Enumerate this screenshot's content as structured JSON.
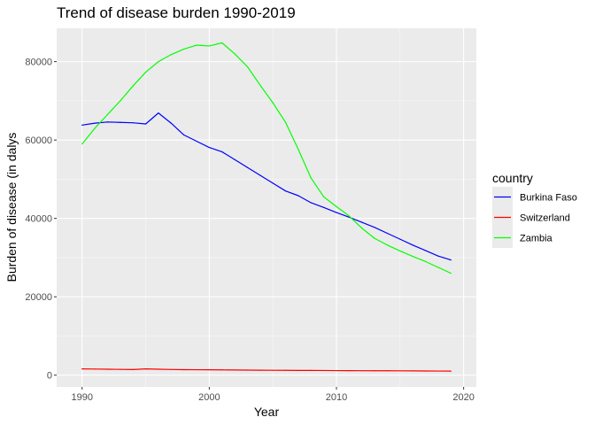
{
  "chart_data": {
    "type": "line",
    "title": "Trend of disease burden 1990-2019",
    "xlabel": "Year",
    "ylabel": "Burden of disease (in dalys",
    "xlim": [
      1988,
      2021
    ],
    "ylim": [
      -3000,
      88500
    ],
    "x_ticks": [
      1990,
      2000,
      2010,
      2020
    ],
    "y_ticks": [
      0,
      20000,
      40000,
      60000,
      80000
    ],
    "grid": true,
    "legend": {
      "title": "country",
      "position": "right"
    },
    "series": [
      {
        "name": "Burkina Faso",
        "color": "#0000ff",
        "x": [
          1990,
          1991,
          1992,
          1993,
          1994,
          1995,
          1996,
          1997,
          1998,
          1999,
          2000,
          2001,
          2002,
          2003,
          2004,
          2005,
          2006,
          2007,
          2008,
          2009,
          2010,
          2011,
          2012,
          2013,
          2014,
          2015,
          2016,
          2017,
          2018,
          2019
        ],
        "values": [
          63800,
          64300,
          64600,
          64500,
          64400,
          64100,
          66900,
          64300,
          61300,
          59700,
          58100,
          57000,
          55000,
          53000,
          51000,
          49000,
          47000,
          45800,
          44000,
          42800,
          41500,
          40300,
          39000,
          37700,
          36200,
          34700,
          33200,
          31800,
          30400,
          29400
        ],
        "label_key": "legend_labels.0"
      },
      {
        "name": "Switzerland",
        "color": "#ff0000",
        "x": [
          1990,
          1991,
          1992,
          1993,
          1994,
          1995,
          1996,
          1997,
          1998,
          1999,
          2000,
          2001,
          2002,
          2003,
          2004,
          2005,
          2006,
          2007,
          2008,
          2009,
          2010,
          2011,
          2012,
          2013,
          2014,
          2015,
          2016,
          2017,
          2018,
          2019
        ],
        "values": [
          1600,
          1560,
          1520,
          1470,
          1430,
          1600,
          1520,
          1450,
          1410,
          1390,
          1370,
          1350,
          1320,
          1290,
          1270,
          1250,
          1230,
          1210,
          1200,
          1190,
          1170,
          1150,
          1140,
          1130,
          1120,
          1110,
          1090,
          1070,
          1050,
          1030
        ]
      },
      {
        "name": "Zambia",
        "color": "#00ff00",
        "x": [
          1990,
          1991,
          1992,
          1993,
          1994,
          1995,
          1996,
          1997,
          1998,
          1999,
          2000,
          2001,
          2002,
          2003,
          2004,
          2005,
          2006,
          2007,
          2008,
          2009,
          2010,
          2011,
          2012,
          2013,
          2014,
          2015,
          2016,
          2017,
          2018,
          2019
        ],
        "values": [
          59000,
          63000,
          66500,
          70000,
          73800,
          77300,
          80000,
          81800,
          83200,
          84200,
          84000,
          84800,
          82000,
          78700,
          74000,
          69500,
          64500,
          57600,
          50300,
          45500,
          43000,
          40600,
          37500,
          34900,
          33200,
          31700,
          30300,
          29000,
          27500,
          26000
        ]
      }
    ]
  }
}
